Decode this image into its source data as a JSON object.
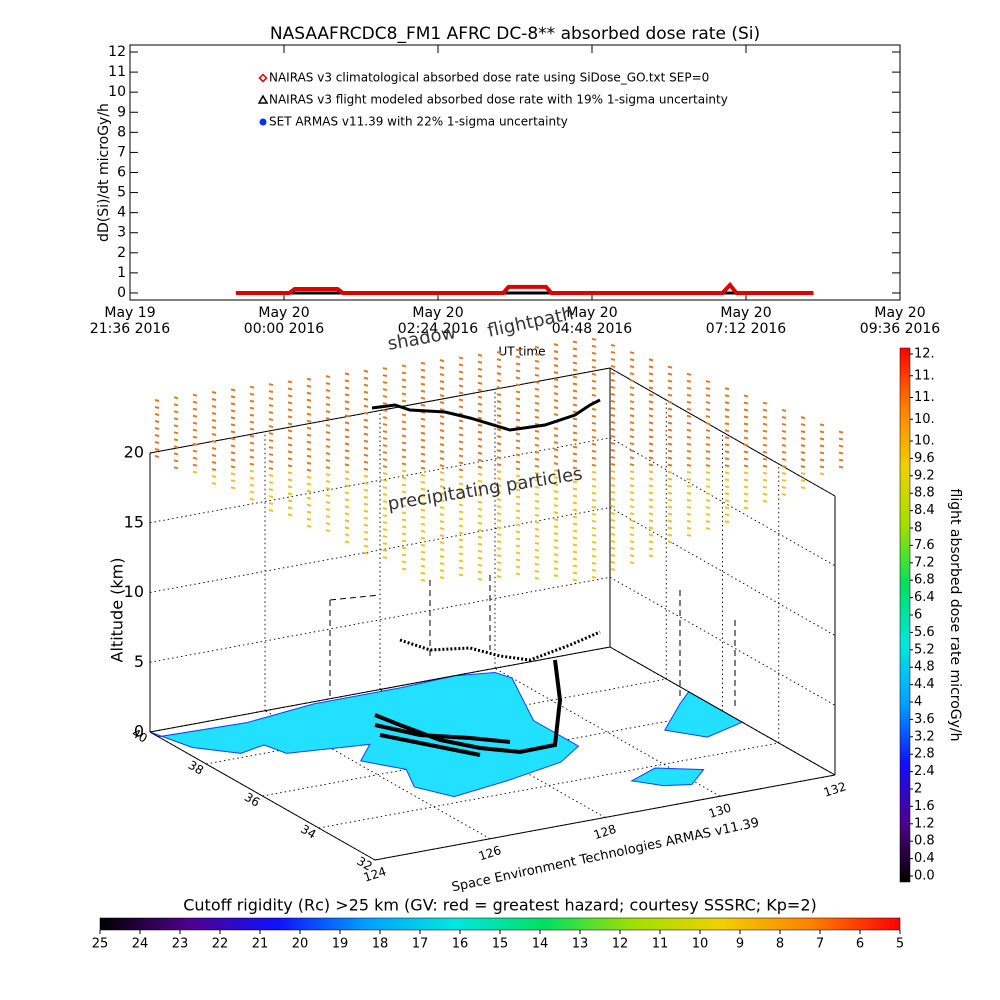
{
  "chart_data": [
    {
      "type": "line",
      "title": "NASAAFRCDC8_FM1 AFRC DC-8** absorbed dose rate (Si)",
      "y_label": "dD(Si)/dt microGy/h",
      "x_label": "UT time",
      "x": [
        "2016-05-19 23:15",
        "2016-05-20 00:05",
        "2016-05-20 00:10",
        "2016-05-20 00:50",
        "2016-05-20 00:55",
        "2016-05-20 03:25",
        "2016-05-20 03:30",
        "2016-05-20 04:05",
        "2016-05-20 04:10",
        "2016-05-20 06:50",
        "2016-05-20 06:57",
        "2016-05-20 07:03",
        "2016-05-20 08:15"
      ],
      "series": [
        {
          "name": "NAIRAS v3 flight modeled absorbed dose rate with 19% 1-sigma uncertainty",
          "color": "#000000",
          "marker": "triangle",
          "values": [
            0,
            0,
            0,
            0,
            0,
            0,
            0,
            0,
            0,
            0,
            0,
            0,
            0
          ]
        },
        {
          "name": "NAIRAS v3 climatological absorbed dose rate using SiDose_GO.txt SEP=0",
          "color": "#dd0000",
          "marker": "diamond",
          "values": [
            0,
            0,
            0.2,
            0.2,
            0,
            0,
            0.3,
            0.3,
            0,
            0,
            0.4,
            0,
            0
          ]
        },
        {
          "name": "SET ARMAS v11.39 with 22% 1-sigma uncertainty",
          "color": "#0030ff",
          "marker": "circle",
          "values": [
            null,
            null,
            null,
            null,
            null,
            null,
            null,
            null,
            null,
            null,
            null,
            null,
            null
          ]
        }
      ],
      "xlim": [
        "2016-05-19 21:36",
        "2016-05-20 09:36"
      ],
      "xticks": [
        {
          "value": "2016-05-19 21:36",
          "label": [
            "May 19",
            "21:36 2016"
          ]
        },
        {
          "value": "2016-05-20 00:00",
          "label": [
            "May 20",
            "00:00 2016"
          ]
        },
        {
          "value": "2016-05-20 02:24",
          "label": [
            "May 20",
            "02:24 2016"
          ]
        },
        {
          "value": "2016-05-20 04:48",
          "label": [
            "May 20",
            "04:48 2016"
          ]
        },
        {
          "value": "2016-05-20 07:12",
          "label": [
            "May 20",
            "07:12 2016"
          ]
        },
        {
          "value": "2016-05-20 09:36",
          "label": [
            "May 20",
            "09:36 2016"
          ]
        }
      ],
      "ylim": [
        -0.35,
        12.35
      ],
      "yticks": [
        0,
        1,
        2,
        3,
        4,
        5,
        6,
        7,
        8,
        9,
        10,
        11,
        12
      ]
    },
    {
      "type": "surface3d",
      "z_label": "Altitude (km)",
      "xlim": [
        124,
        132
      ],
      "ylim": [
        32,
        40
      ],
      "zlim": [
        0,
        20
      ],
      "xticks": [
        124,
        126,
        128,
        130,
        132
      ],
      "yticks": [
        40,
        38,
        36,
        34,
        32
      ],
      "zticks": [
        0,
        5,
        10,
        15,
        20
      ],
      "annotations": [
        "shadow",
        "flightpath",
        "precipitating particles"
      ],
      "credit": "Space Environment Technologies ARMAS v11.39",
      "land_color": "#22e0ff",
      "coast_color": "#1040ff"
    },
    {
      "type": "colorbar",
      "orientation": "vertical",
      "label": "flight absorbed dose rate microGy/h",
      "lim": [
        0,
        12
      ],
      "ticks": [
        {
          "value": 0,
          "label": "0.0"
        },
        0.4,
        0.8,
        1.2,
        1.6,
        2.0,
        2.4,
        2.8,
        3.2,
        3.6,
        4.0,
        4.4,
        4.8,
        5.2,
        5.6,
        6.0,
        6.4,
        6.8,
        7.2,
        7.6,
        8.0,
        8.4,
        8.8,
        9.2,
        9.6,
        {
          "value": 10,
          "label": "10."
        },
        {
          "value": 10.5,
          "label": "10."
        },
        {
          "value": 11,
          "label": "11."
        },
        {
          "value": 11.5,
          "label": "11."
        },
        {
          "value": 12,
          "label": "12."
        }
      ],
      "colormap": [
        "#000000",
        "#50008c",
        "#1010ff",
        "#00a0ff",
        "#00e8e0",
        "#00e060",
        "#a0e000",
        "#f0d000",
        "#ff8000",
        "#ff0000"
      ]
    },
    {
      "type": "colorbar",
      "orientation": "horizontal",
      "label": "Cutoff rigidity (Rc) >25 km (GV: red = greatest hazard; courtesy SSSRC; Kp=2)",
      "lim": [
        25,
        5
      ],
      "ticks": [
        25,
        24,
        23,
        22,
        21,
        20,
        19,
        18,
        17,
        16,
        15,
        14,
        13,
        12,
        11,
        10,
        9,
        8,
        7,
        6,
        5
      ],
      "colormap": [
        "#000000",
        "#50008c",
        "#1010ff",
        "#00a0ff",
        "#00e8e0",
        "#00e060",
        "#a0e000",
        "#f0d000",
        "#ff8000",
        "#ff0000"
      ]
    }
  ]
}
